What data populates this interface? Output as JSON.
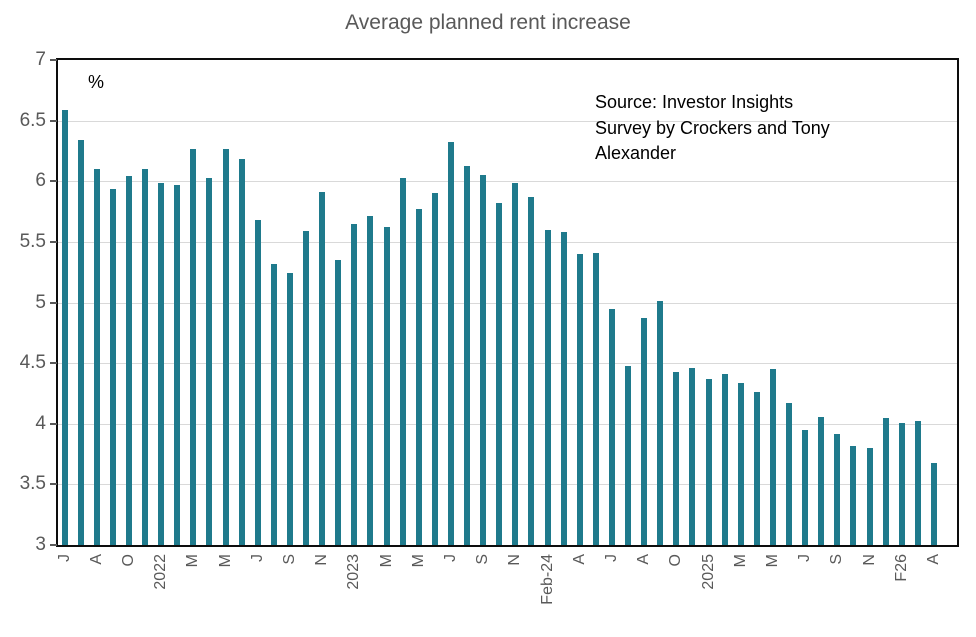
{
  "title": "Average planned rent increase",
  "unit_label": "%",
  "source_note": "Source: Investor Insights\nSurvey by Crockers and Tony\nAlexander",
  "chart_data": {
    "type": "bar",
    "title": "Average planned rent increase",
    "ylabel": "%",
    "xlabel": "",
    "ylim": [
      3,
      7
    ],
    "ytick_step": 0.5,
    "ytick_labels": [
      "7",
      "6.5",
      "6",
      "5.5",
      "5",
      "4.5",
      "4",
      "3.5",
      "3"
    ],
    "grid": "horizontal",
    "legend": "none",
    "bar_color": "#1f7a8c",
    "grid_color": "#d9d9d9",
    "axis_text_color": "#595959",
    "shown_tick_labels": [
      "J",
      "A",
      "O",
      "2022",
      "M",
      "M",
      "J",
      "S",
      "N",
      "2023",
      "M",
      "M",
      "J",
      "S",
      "N",
      "Feb-24",
      "A",
      "J",
      "A",
      "O",
      "2025",
      "M",
      "M",
      "J",
      "S",
      "N",
      "F26",
      "A"
    ],
    "categories": [
      "J",
      "",
      "A",
      "",
      "O",
      "",
      "2022",
      "",
      "M",
      "",
      "M",
      "",
      "J",
      "",
      "S",
      "",
      "N",
      "",
      "2023",
      "",
      "M",
      "",
      "M",
      "",
      "J",
      "",
      "S",
      "",
      "N",
      "",
      "Feb-24",
      "",
      "A",
      "",
      "J",
      "",
      "A",
      "",
      "O",
      "",
      "2025",
      "",
      "M",
      "",
      "M",
      "",
      "J",
      "",
      "S",
      "",
      "N",
      "",
      "F26",
      "",
      "A"
    ],
    "values": [
      6.59,
      6.34,
      6.1,
      5.94,
      6.04,
      6.1,
      5.99,
      5.97,
      6.27,
      6.03,
      6.27,
      6.18,
      5.68,
      5.32,
      5.24,
      5.59,
      5.91,
      5.35,
      5.65,
      5.71,
      5.62,
      6.03,
      5.77,
      5.9,
      6.32,
      6.13,
      6.05,
      5.82,
      5.99,
      5.87,
      5.6,
      5.58,
      5.4,
      5.41,
      4.95,
      4.48,
      4.87,
      5.01,
      4.43,
      4.46,
      4.37,
      4.41,
      4.34,
      4.26,
      4.45,
      4.17,
      3.95,
      4.06,
      3.92,
      3.82,
      3.8,
      4.05,
      4.01,
      4.02,
      3.68
    ]
  }
}
